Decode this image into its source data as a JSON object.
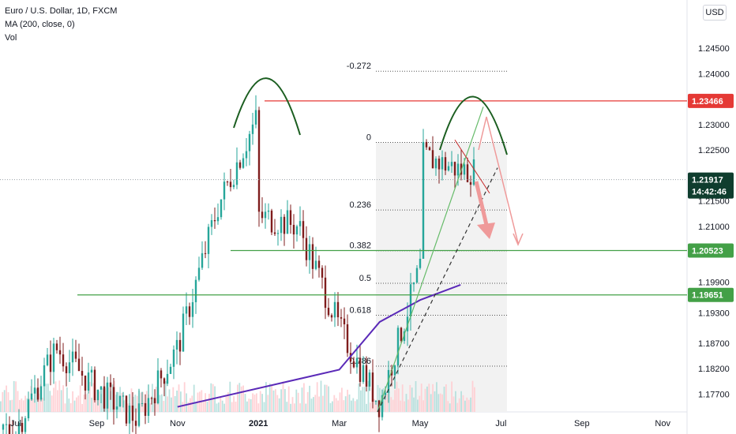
{
  "legend": {
    "symbol": "Euro / U.S. Dollar, 1D, FXCM",
    "ma": "MA (200, close, 0)",
    "vol": "Vol"
  },
  "currency": "USD",
  "colors": {
    "up": "#26a69a",
    "down": "#ef5350",
    "candle": "#7f1d1d",
    "resistance": "#e53935",
    "support": "#43a047",
    "ma": "#5b2ab8",
    "arc": "#1b5e20",
    "arrow": "#ef9a9a",
    "current": "#0f3d2e"
  },
  "chart_data": {
    "type": "candlestick",
    "title": "Euro / U.S. Dollar, 1D, FXCM",
    "ylim": [
      1.1735,
      1.2545
    ],
    "y_ticks": [
      "1.24500",
      "1.24000",
      "1.23000",
      "1.22500",
      "1.21500",
      "1.21000",
      "1.19900",
      "1.19300",
      "1.18700",
      "1.18200",
      "1.17700"
    ],
    "x_ticks": [
      "Jul",
      "Sep",
      "Nov",
      "2021",
      "Mar",
      "May",
      "Jul",
      "Sep",
      "Nov"
    ],
    "price_tags": [
      {
        "value": "1.23466",
        "role": "resistance"
      },
      {
        "value": "1.20523",
        "role": "support"
      },
      {
        "value": "1.19651",
        "role": "support"
      }
    ],
    "current": {
      "price": "1.21917",
      "countdown": "14:42:46"
    },
    "fib_levels": [
      {
        "label": "-0.272",
        "value": 1.2405
      },
      {
        "label": "0",
        "value": 1.2265
      },
      {
        "label": "0.236",
        "value": 1.2132
      },
      {
        "label": "0.382",
        "value": 1.2052
      },
      {
        "label": "0.5",
        "value": 1.1988
      },
      {
        "label": "0.618",
        "value": 1.1925
      },
      {
        "label": "0.786",
        "value": 1.1825
      }
    ],
    "horizontal_levels": [
      1.23466,
      1.20523,
      1.19651
    ],
    "ma200_points": [
      [
        "Nov 2020",
        1.1745
      ],
      [
        "Mar 2021",
        1.1818
      ],
      [
        "Apr 2021",
        1.1912
      ],
      [
        "May 2021",
        1.1955
      ],
      [
        "Jun 2021",
        1.1985
      ]
    ],
    "price_path": [
      [
        "Jul 2020",
        1.17
      ],
      [
        "Aug 2020",
        1.186
      ],
      [
        "Sep 2020",
        1.178
      ],
      [
        "Oct 2020",
        1.172
      ],
      [
        "Nov 2020",
        1.186
      ],
      [
        "Dec 2020",
        1.214
      ],
      [
        "Jan 2021",
        1.232
      ],
      [
        "Jan 2021",
        1.212
      ],
      [
        "Feb 2021",
        1.21
      ],
      [
        "Mar 2021",
        1.19
      ],
      [
        "Apr 2021",
        1.175
      ],
      [
        "May 2021",
        1.202
      ],
      [
        "May 2021",
        1.224
      ],
      [
        "Jun 2021",
        1.221
      ]
    ]
  }
}
